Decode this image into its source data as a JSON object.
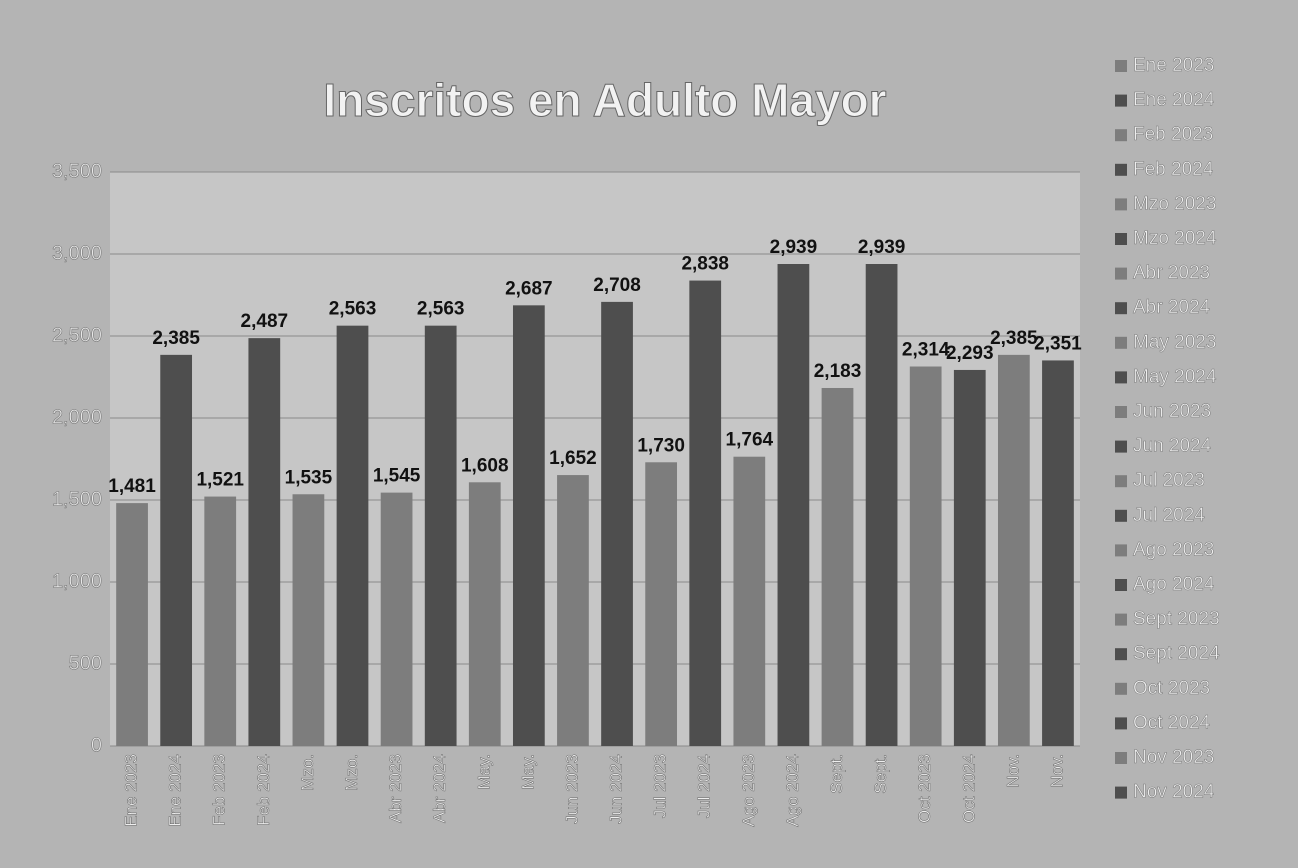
{
  "chart_data": {
    "type": "bar",
    "title": "Inscritos en Adulto Mayor",
    "categories": [
      "Ene 2023",
      "Ene 2024",
      "Feb 2023",
      "Feb 2024",
      "Mzo.",
      "Mzo.",
      "Abr 2023",
      "Abr 2024",
      "May.",
      "May.",
      "Jun 2023",
      "Jun 2024",
      "Jul 2023",
      "Jul 2024",
      "Ago 2023",
      "Ago 2024",
      "Sept.",
      "Sept.",
      "Oct 2023",
      "Oct 2024",
      "Nov.",
      "Nov."
    ],
    "values": [
      1481,
      2385,
      1521,
      2487,
      1535,
      2563,
      1545,
      2563,
      1608,
      2687,
      1652,
      2708,
      1730,
      2838,
      1764,
      2939,
      2183,
      2939,
      2314,
      2293,
      2385,
      2351
    ],
    "value_labels": [
      "1,481",
      "2,385",
      "1,521",
      "2,487",
      "1,535",
      "2,563",
      "1,545",
      "2,563",
      "1,608",
      "2,687",
      "1,652",
      "2,708",
      "1,730",
      "2,838",
      "1,764",
      "2,939",
      "2,183",
      "2,939",
      "2,314",
      "2,293",
      "2,385",
      "2,351"
    ],
    "colors": [
      "#7d7d7d",
      "#4e4e4e",
      "#7d7d7d",
      "#4e4e4e",
      "#7d7d7d",
      "#4e4e4e",
      "#7d7d7d",
      "#4e4e4e",
      "#7d7d7d",
      "#4e4e4e",
      "#7d7d7d",
      "#4e4e4e",
      "#7d7d7d",
      "#4e4e4e",
      "#7d7d7d",
      "#4e4e4e",
      "#7d7d7d",
      "#4e4e4e",
      "#7d7d7d",
      "#4e4e4e",
      "#7d7d7d",
      "#4e4e4e"
    ],
    "legend": [
      "Ene 2023",
      "Ene 2024",
      "Feb 2023",
      "Feb 2024",
      "Mzo 2023",
      "Mzo 2024",
      "Abr 2023",
      "Abr 2024",
      "May 2023",
      "May 2024",
      "Jun 2023",
      "Jun 2024",
      "Jul 2023",
      "Jul 2024",
      "Ago 2023",
      "Ago 2024",
      "Sept 2023",
      "Sept 2024",
      "Oct 2023",
      "Oct 2024",
      "Nov 2023",
      "Nov 2024"
    ],
    "ylim": [
      0,
      3500
    ],
    "yticks": [
      0,
      500,
      {
        "value": 1000,
        "label": "1,000"
      },
      {
        "value": 1500,
        "label": "1,500"
      },
      {
        "value": 2000,
        "label": "2,000"
      },
      {
        "value": 2500,
        "label": "2,500"
      },
      {
        "value": 3000,
        "label": "3,000"
      },
      {
        "value": 3500,
        "label": "3,500"
      }
    ],
    "grid": true,
    "legend_position": "right"
  }
}
